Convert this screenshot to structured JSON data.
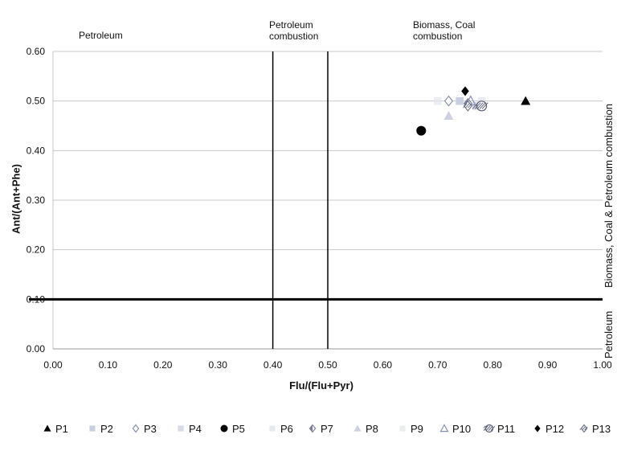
{
  "chart_data": {
    "type": "scatter",
    "xlabel": "Flu/(Flu+Pyr)",
    "ylabel": "Ant/(Ant+Phe)",
    "xlim": [
      0,
      1
    ],
    "ylim": [
      0,
      0.6
    ],
    "x_ticks": [
      "0.00",
      "0.10",
      "0.20",
      "0.30",
      "0.40",
      "0.50",
      "0.60",
      "0.70",
      "0.80",
      "0.90",
      "1.00"
    ],
    "y_ticks": [
      "0.00",
      "0.10",
      "0.20",
      "0.30",
      "0.40",
      "0.50",
      "0.60"
    ],
    "grid": true,
    "reference_lines": {
      "vertical": [
        0.4,
        0.5
      ],
      "horizontal": [
        0.1
      ]
    },
    "region_labels": {
      "petroleum": "Petroleum",
      "petroleum_combustion": "Petroleum combustion",
      "biomass_coal": "Biomass, Coal combustion",
      "right_bottom": "Petroleum",
      "right_top": "Biomass, Coal & Petroleum combustion"
    },
    "legend_position": "bottom",
    "series": [
      {
        "name": "P1",
        "marker": "triangle",
        "color": "#000000",
        "points": [
          [
            0.86,
            0.5
          ]
        ]
      },
      {
        "name": "P2",
        "marker": "square",
        "color": "#c8d0e0",
        "points": [
          [
            0.74,
            0.5
          ]
        ]
      },
      {
        "name": "P3",
        "marker": "diamond-open",
        "color": "#8890b0",
        "points": [
          [
            0.72,
            0.5
          ]
        ]
      },
      {
        "name": "P4",
        "marker": "square",
        "color": "#d8dce8",
        "points": [
          [
            0.77,
            0.49
          ]
        ]
      },
      {
        "name": "P5",
        "marker": "circle",
        "color": "#000000",
        "points": [
          [
            0.67,
            0.44
          ]
        ]
      },
      {
        "name": "P6",
        "marker": "square-light",
        "color": "#dde0ea",
        "points": [
          [
            0.78,
            0.5
          ]
        ]
      },
      {
        "name": "P7",
        "marker": "diamond-half",
        "color": "#7a7f99",
        "points": [
          [
            0.755,
            0.495
          ]
        ]
      },
      {
        "name": "P8",
        "marker": "triangle-light",
        "color": "#c0c6d8",
        "points": [
          [
            0.72,
            0.47
          ]
        ]
      },
      {
        "name": "P9",
        "marker": "square-light",
        "color": "#e2e5ee",
        "points": [
          [
            0.7,
            0.5
          ]
        ]
      },
      {
        "name": "P10",
        "marker": "triangle-open",
        "color": "#8890b0",
        "points": [
          [
            0.76,
            0.5
          ]
        ]
      },
      {
        "name": "P11",
        "marker": "circle-hatch",
        "color": "#555a70",
        "points": [
          [
            0.78,
            0.49
          ]
        ]
      },
      {
        "name": "P12",
        "marker": "diamond",
        "color": "#000000",
        "points": [
          [
            0.75,
            0.52
          ]
        ]
      },
      {
        "name": "P13",
        "marker": "diamond-hatch",
        "color": "#6a6f88",
        "points": [
          [
            0.755,
            0.49
          ]
        ]
      }
    ]
  }
}
